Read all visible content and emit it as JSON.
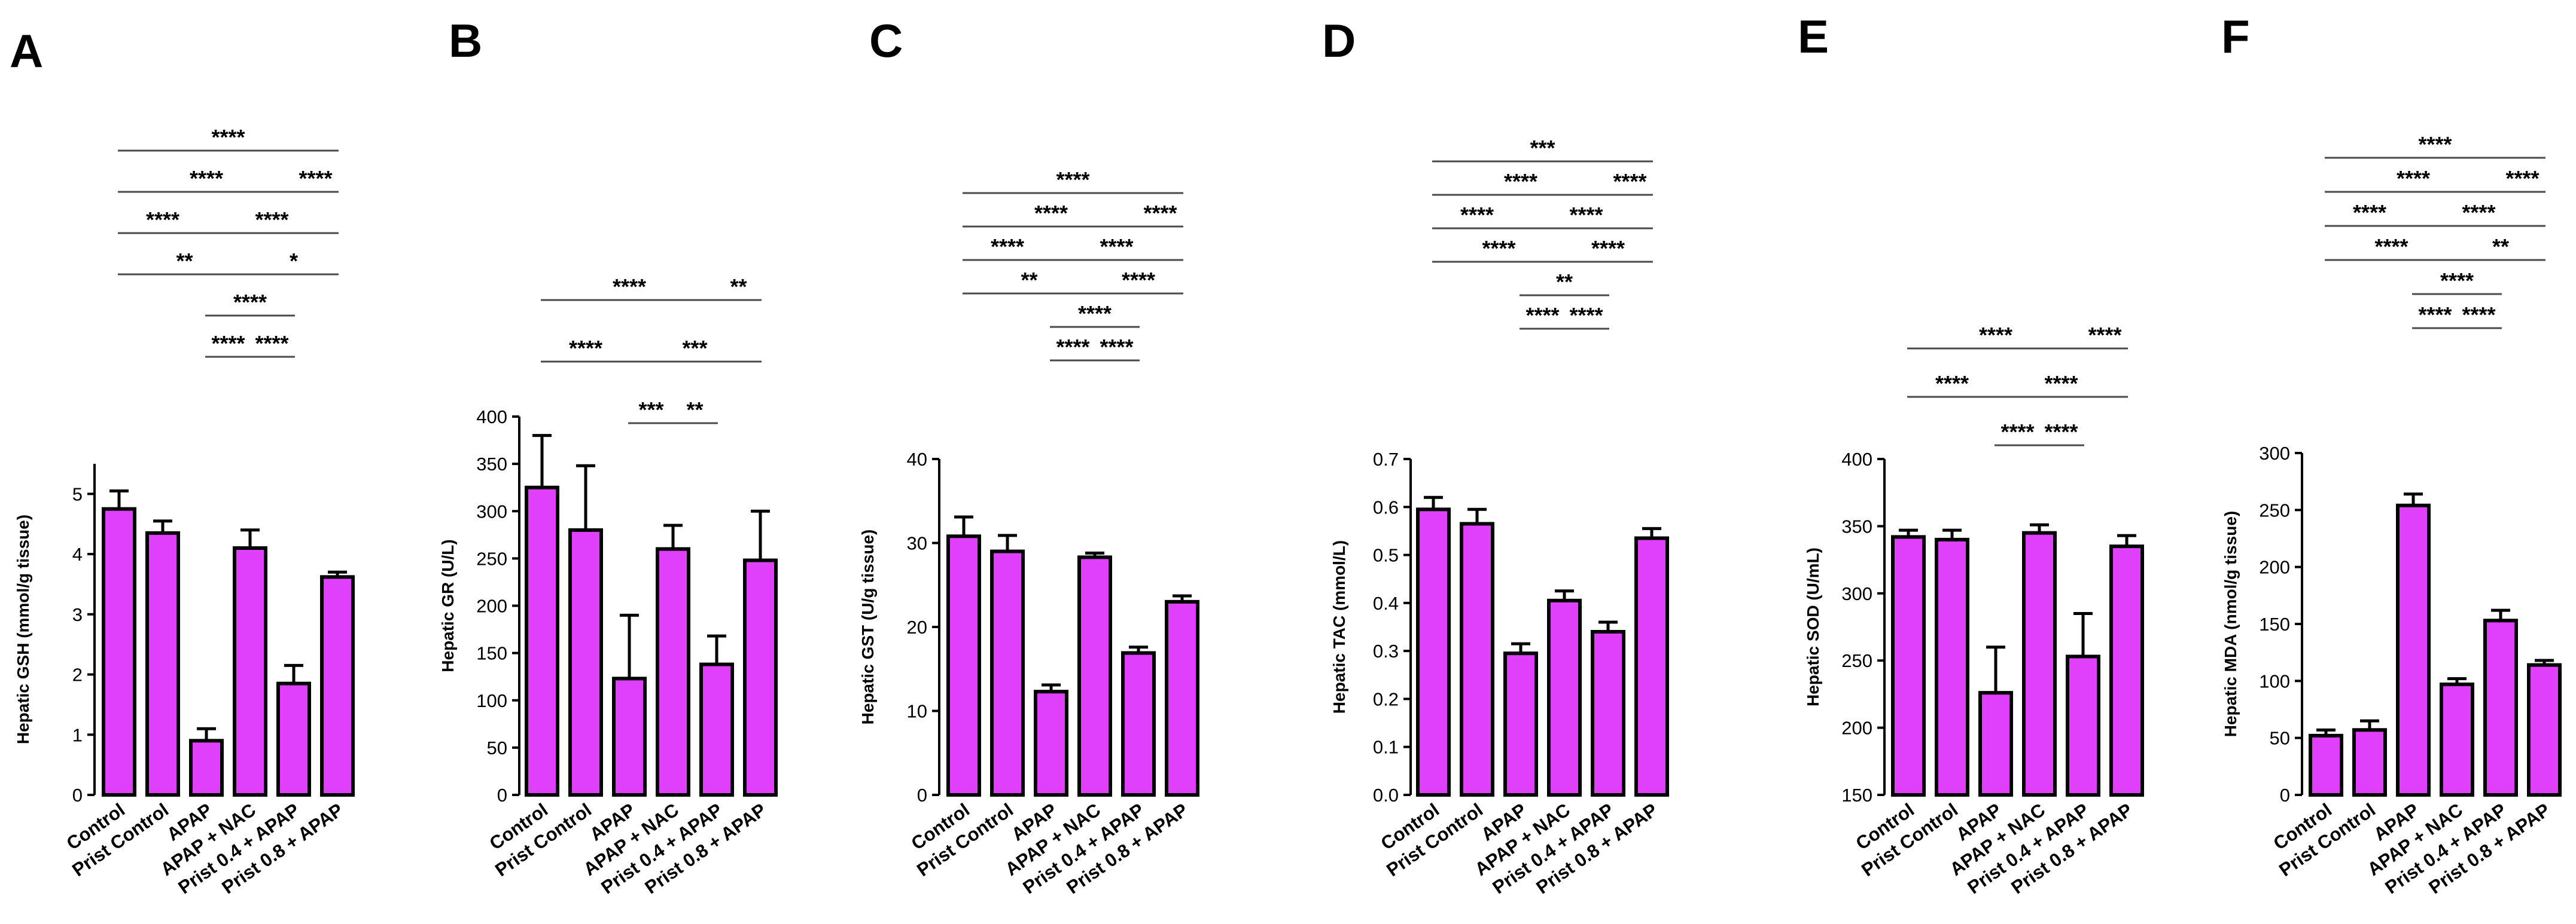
{
  "bar_color": "#e040fb",
  "categories": [
    "Control",
    "Prist Control",
    "APAP",
    "APAP + NAC",
    "Prist 0.4 + APAP",
    "Prist 0.8 + APAP"
  ],
  "chart_data": [
    {
      "panel": "A",
      "type": "bar",
      "ylabel": "Hepatic GSH (mmol/g tissue)",
      "ylim": [
        0,
        5.5
      ],
      "yticks": [
        0,
        1,
        2,
        3,
        4,
        5
      ],
      "ytick_labels": [
        "0",
        "1",
        "2",
        "3",
        "4",
        "5"
      ],
      "values": [
        4.75,
        4.35,
        0.9,
        4.1,
        1.85,
        3.62
      ],
      "errors": [
        0.3,
        0.2,
        0.2,
        0.3,
        0.3,
        0.08
      ],
      "significance": [
        {
          "from": 0,
          "to": 5,
          "label": "****"
        },
        {
          "from": 0,
          "to": 4,
          "label": "****"
        },
        {
          "from": 2,
          "to": 5,
          "label": "****"
        },
        {
          "from": 0,
          "to": 3,
          "label": "**"
        },
        {
          "from": 3,
          "to": 5,
          "label": "*"
        },
        {
          "from": 2,
          "to": 4,
          "label": "****"
        },
        {
          "from": 0,
          "to": 2,
          "label": "****"
        },
        {
          "from": 3,
          "to": 4,
          "label": "****"
        },
        {
          "from": 2,
          "to": 3,
          "label": "****"
        },
        {
          "from": 4,
          "to": 5,
          "label": "****"
        }
      ]
    },
    {
      "panel": "B",
      "type": "bar",
      "ylabel": "Hepatic GR (U/L)",
      "ylim": [
        0,
        400
      ],
      "yticks": [
        0,
        50,
        100,
        150,
        200,
        250,
        300,
        350,
        400
      ],
      "ytick_labels": [
        "0",
        "50",
        "100",
        "150",
        "200",
        "250",
        "300",
        "350",
        "400"
      ],
      "values": [
        325,
        280,
        123,
        260,
        138,
        248
      ],
      "errors": [
        55,
        68,
        67,
        25,
        30,
        52
      ],
      "significance": [
        {
          "from": 0,
          "to": 4,
          "label": "****"
        },
        {
          "from": 2,
          "to": 5,
          "label": "***"
        },
        {
          "from": 3,
          "to": 4,
          "label": "**"
        },
        {
          "from": 0,
          "to": 2,
          "label": "****"
        },
        {
          "from": 2,
          "to": 3,
          "label": "***"
        },
        {
          "from": 4,
          "to": 5,
          "label": "**"
        }
      ]
    },
    {
      "panel": "C",
      "type": "bar",
      "ylabel": "Hepatic GST (U/g tissue)",
      "ylim": [
        0,
        40
      ],
      "yticks": [
        0,
        10,
        20,
        30,
        40
      ],
      "ytick_labels": [
        "0",
        "10",
        "20",
        "30",
        "40"
      ],
      "values": [
        30.8,
        29.0,
        12.3,
        28.3,
        16.9,
        23.0
      ],
      "errors": [
        2.3,
        1.9,
        0.8,
        0.5,
        0.7,
        0.7
      ],
      "significance": [
        {
          "from": 0,
          "to": 5,
          "label": "****"
        },
        {
          "from": 0,
          "to": 4,
          "label": "****"
        },
        {
          "from": 2,
          "to": 5,
          "label": "****"
        },
        {
          "from": 0,
          "to": 3,
          "label": "**"
        },
        {
          "from": 3,
          "to": 5,
          "label": "****"
        },
        {
          "from": 2,
          "to": 4,
          "label": "****"
        },
        {
          "from": 0,
          "to": 2,
          "label": "****"
        },
        {
          "from": 3,
          "to": 4,
          "label": "****"
        },
        {
          "from": 2,
          "to": 3,
          "label": "****"
        },
        {
          "from": 4,
          "to": 5,
          "label": "****"
        }
      ]
    },
    {
      "panel": "D",
      "type": "bar",
      "ylabel": "Hepatic TAC (mmol/L)",
      "ylim": [
        0,
        0.7
      ],
      "yticks": [
        0,
        0.1,
        0.2,
        0.3,
        0.4,
        0.5,
        0.6,
        0.7
      ],
      "ytick_labels": [
        "0.0",
        "0.1",
        "0.2",
        "0.3",
        "0.4",
        "0.5",
        "0.6",
        "0.7"
      ],
      "values": [
        0.595,
        0.565,
        0.295,
        0.405,
        0.34,
        0.535
      ],
      "errors": [
        0.025,
        0.03,
        0.02,
        0.02,
        0.02,
        0.02
      ],
      "significance": [
        {
          "from": 0,
          "to": 5,
          "label": "***"
        },
        {
          "from": 0,
          "to": 4,
          "label": "****"
        },
        {
          "from": 2,
          "to": 5,
          "label": "****"
        },
        {
          "from": 0,
          "to": 3,
          "label": "****"
        },
        {
          "from": 3,
          "to": 5,
          "label": "****"
        },
        {
          "from": 2,
          "to": 4,
          "label": "**"
        },
        {
          "from": 0,
          "to": 2,
          "label": "****"
        },
        {
          "from": 3,
          "to": 4,
          "label": "****"
        },
        {
          "from": 2,
          "to": 3,
          "label": "****"
        },
        {
          "from": 4,
          "to": 5,
          "label": "****"
        }
      ]
    },
    {
      "panel": "E",
      "type": "bar",
      "ylabel": "Hepatic SOD (U/mL)",
      "ylim": [
        150,
        400
      ],
      "yticks": [
        150,
        200,
        250,
        300,
        350,
        400
      ],
      "ytick_labels": [
        "150",
        "200",
        "250",
        "300",
        "350",
        "400"
      ],
      "values": [
        342,
        340,
        226,
        345,
        253,
        335
      ],
      "errors": [
        5,
        7,
        34,
        6,
        32,
        8
      ],
      "significance": [
        {
          "from": 0,
          "to": 4,
          "label": "****"
        },
        {
          "from": 2,
          "to": 5,
          "label": "****"
        },
        {
          "from": 0,
          "to": 2,
          "label": "****"
        },
        {
          "from": 3,
          "to": 4,
          "label": "****"
        },
        {
          "from": 2,
          "to": 3,
          "label": "****"
        },
        {
          "from": 4,
          "to": 5,
          "label": "****"
        }
      ]
    },
    {
      "panel": "F",
      "type": "bar",
      "ylabel": "Hepatic MDA (nmol/g tissue)",
      "ylim": [
        0,
        300
      ],
      "yticks": [
        0,
        50,
        100,
        150,
        200,
        250,
        300
      ],
      "ytick_labels": [
        "0",
        "50",
        "100",
        "150",
        "200",
        "250",
        "300"
      ],
      "values": [
        52,
        57,
        254,
        97,
        153,
        114
      ],
      "errors": [
        5,
        8,
        10,
        5,
        9,
        4
      ],
      "significance": [
        {
          "from": 0,
          "to": 5,
          "label": "****"
        },
        {
          "from": 0,
          "to": 4,
          "label": "****"
        },
        {
          "from": 2,
          "to": 5,
          "label": "****"
        },
        {
          "from": 0,
          "to": 3,
          "label": "****"
        },
        {
          "from": 3,
          "to": 5,
          "label": "**"
        },
        {
          "from": 2,
          "to": 4,
          "label": "****"
        },
        {
          "from": 0,
          "to": 2,
          "label": "****"
        },
        {
          "from": 3,
          "to": 4,
          "label": "****"
        },
        {
          "from": 2,
          "to": 3,
          "label": "****"
        },
        {
          "from": 4,
          "to": 5,
          "label": "****"
        }
      ]
    }
  ]
}
